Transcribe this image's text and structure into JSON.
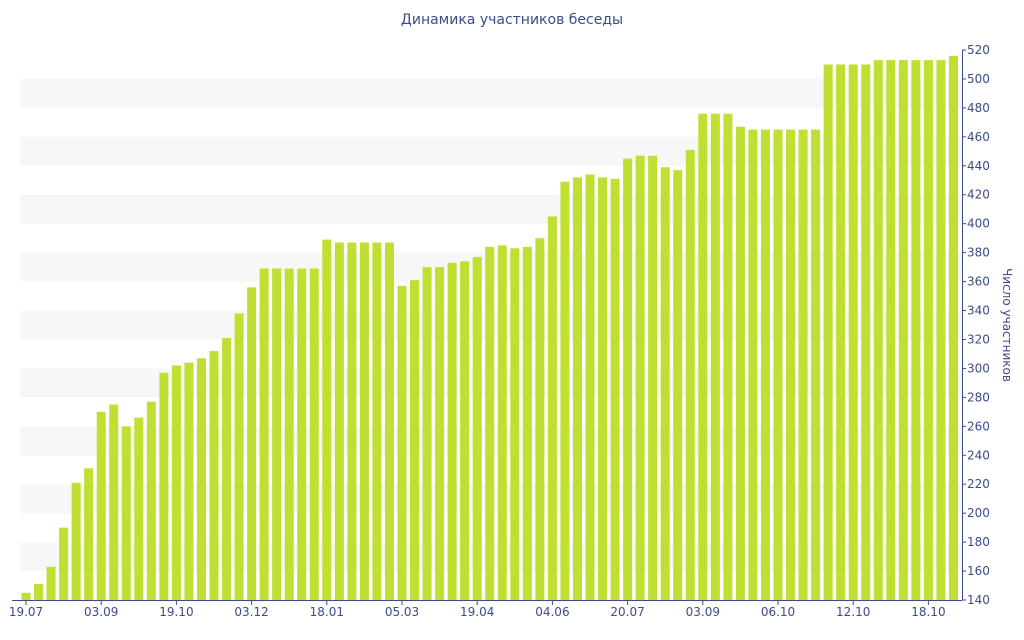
{
  "chart_data": {
    "type": "bar",
    "title": "Динамика участников беседы",
    "ylabel": "Число участников",
    "xlabel": "",
    "ylim": [
      140,
      520
    ],
    "yticks": [
      140,
      160,
      180,
      200,
      220,
      240,
      260,
      280,
      300,
      320,
      340,
      360,
      380,
      400,
      420,
      440,
      460,
      480,
      500,
      520
    ],
    "grid": "alternating horizontal bands",
    "bar_color": "#bfe033",
    "band_color": "#f7f7f7",
    "axis_color": "#3d4b8a",
    "x_tick_labels": [
      {
        "index": 0,
        "label": "19.07"
      },
      {
        "index": 6,
        "label": "03.09"
      },
      {
        "index": 12,
        "label": "19.10"
      },
      {
        "index": 18,
        "label": "03.12"
      },
      {
        "index": 24,
        "label": "18.01"
      },
      {
        "index": 30,
        "label": "05.03"
      },
      {
        "index": 36,
        "label": "19.04"
      },
      {
        "index": 42,
        "label": "04.06"
      },
      {
        "index": 48,
        "label": "20.07"
      },
      {
        "index": 54,
        "label": "03.09"
      },
      {
        "index": 60,
        "label": "06.10"
      },
      {
        "index": 66,
        "label": "12.10"
      },
      {
        "index": 72,
        "label": "18.10"
      }
    ],
    "values": [
      145,
      151,
      163,
      190,
      221,
      231,
      270,
      275,
      260,
      266,
      277,
      297,
      302,
      304,
      307,
      312,
      321,
      338,
      356,
      369,
      369,
      369,
      369,
      369,
      389,
      387,
      387,
      387,
      387,
      387,
      357,
      361,
      370,
      370,
      373,
      374,
      377,
      384,
      385,
      383,
      384,
      390,
      405,
      429,
      432,
      434,
      432,
      431,
      445,
      447,
      447,
      439,
      437,
      451,
      476,
      476,
      476,
      467,
      465,
      465,
      465,
      465,
      465,
      465,
      510,
      510,
      510,
      510,
      513,
      513,
      513,
      513,
      513,
      513,
      516
    ]
  }
}
